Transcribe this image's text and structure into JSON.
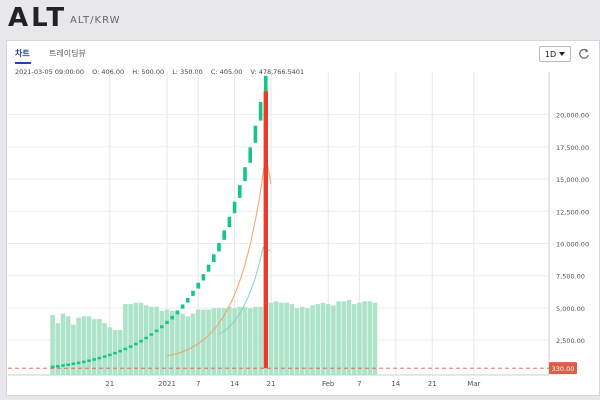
{
  "header": {
    "ticker": "ALT",
    "pair": "ALT/KRW"
  },
  "tabs": [
    {
      "label": "차트",
      "active": true
    },
    {
      "label": "트레이딩뷰",
      "active": false
    }
  ],
  "interval": "1D",
  "ohlc": {
    "date": "2021-03-05 09:00:00",
    "open": "O: 406.00",
    "high": "H: 500.00",
    "low": "L: 350.00",
    "close": "C: 405.00",
    "volume": "V: 478,766.5401"
  },
  "icons": {
    "interval_caret": "chevron-down-icon",
    "reset": "refresh-icon"
  },
  "colors": {
    "up": "#16c784",
    "down": "#ea3b2d",
    "volume": "#a9e3c6",
    "ma_short": "#f4a06a",
    "ma_long": "#7fd3d0",
    "price_line": "#e25a4a"
  },
  "chart_data": {
    "type": "candlestick",
    "x_tick_labels": [
      "21",
      "2021",
      "7",
      "14",
      "21",
      "Feb",
      "7",
      "14",
      "21",
      "Mar"
    ],
    "y_tick_labels": [
      "2,500.00",
      "5,000.00",
      "7,500.00",
      "10,000.00",
      "12,500.00",
      "15,000.00",
      "17,500.00",
      "20,000.00"
    ],
    "y_range": [
      -200,
      23300
    ],
    "current_price_label": "330.00",
    "current_price": 330,
    "x_range_days": [
      -27,
      24
    ],
    "candles": {
      "start_day": -22,
      "end_day": 19,
      "start_price": 500,
      "end_price": 21400,
      "growth": "exponential"
    },
    "crash_candle": {
      "day": 19,
      "open": 21800,
      "close": 330
    },
    "volume": [
      4400,
      3800,
      4500,
      4300,
      3700,
      4200,
      4300,
      4300,
      4100,
      4100,
      3800,
      3500,
      3300,
      3300,
      5200,
      5200,
      5300,
      5300,
      5100,
      5000,
      5000,
      4700,
      4800,
      4700,
      4700,
      4500,
      4300,
      4500,
      4800,
      4800,
      4800,
      4900,
      4900,
      4900,
      5000,
      4900,
      5000,
      5000,
      4900,
      5000,
      5000,
      5200,
      5300,
      5400,
      5300,
      5300,
      5200,
      4900,
      5000,
      4900,
      5100,
      5200,
      5300,
      5200,
      5100,
      5400,
      5400,
      5500,
      5200,
      5300,
      5400,
      5400,
      5300
    ],
    "volume_start_day": -44.5,
    "volume_step": 1,
    "ma_short": {
      "start_day": 0,
      "start": 1300,
      "peak_day": 19,
      "peak": 16900,
      "after_day": 20,
      "after": 14600
    },
    "ma_long": {
      "start_day": 10,
      "start": 3000,
      "peak_day": 18.5,
      "peak": 9700,
      "after_day": 20,
      "after": 9400
    }
  }
}
